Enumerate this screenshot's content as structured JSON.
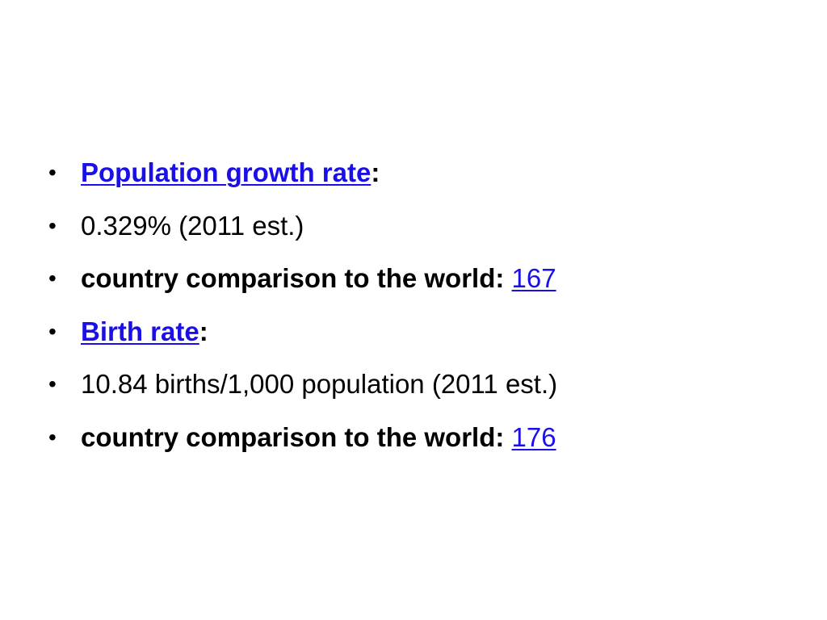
{
  "bullet_char": "•",
  "items": [
    {
      "link": "Population growth rate",
      "suffix": ":"
    },
    {
      "text": "0.329% (2011 est.)"
    },
    {
      "label": "country comparison to the world: ",
      "link": "167"
    },
    {
      "link": "Birth rate",
      "suffix": ":"
    },
    {
      "text": "10.84 births/1,000 population (2011 est.)"
    },
    {
      "label": "country comparison to the world: ",
      "link": "176"
    }
  ],
  "colors": {
    "link": "#1a10e6",
    "text": "#000000",
    "background": "#ffffff"
  }
}
